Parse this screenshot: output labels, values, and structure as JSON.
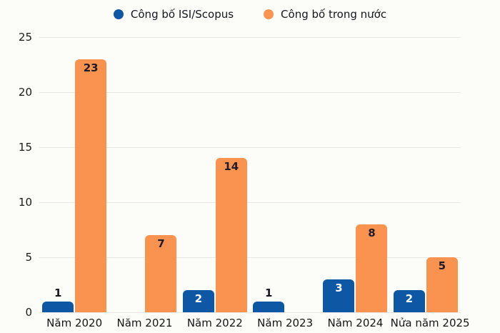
{
  "legend": {
    "items": [
      {
        "label": "Công bố ISI/Scopus",
        "color": "#0e57a4"
      },
      {
        "label": "Công bố trong nước",
        "color": "#fa9350"
      }
    ]
  },
  "chart_data": {
    "type": "bar",
    "title": "",
    "xlabel": "",
    "ylabel": "",
    "categories": [
      "Năm 2020",
      "Năm 2021",
      "Năm 2022",
      "Năm 2023",
      "Năm 2024",
      "Nửa năm 2025"
    ],
    "series": [
      {
        "name": "Công bố ISI/Scopus",
        "color": "#0e57a4",
        "label_color_inside": "#ffffff",
        "values": [
          1,
          null,
          2,
          1,
          3,
          2
        ]
      },
      {
        "name": "Công bố trong nước",
        "color": "#fa9350",
        "label_color_inside": "#1d1c26",
        "values": [
          23,
          7,
          14,
          null,
          8,
          5
        ]
      }
    ],
    "yticks": [
      0,
      5,
      10,
      15,
      20,
      25
    ],
    "ylim": [
      0,
      25
    ],
    "grid": true,
    "legend_position": "top",
    "data_labels": true
  },
  "colors": {
    "background": "#fcfcf8",
    "gridline": "#e8e8e4",
    "axis_text": "#1a1a1a",
    "label_above": "#16161e"
  }
}
